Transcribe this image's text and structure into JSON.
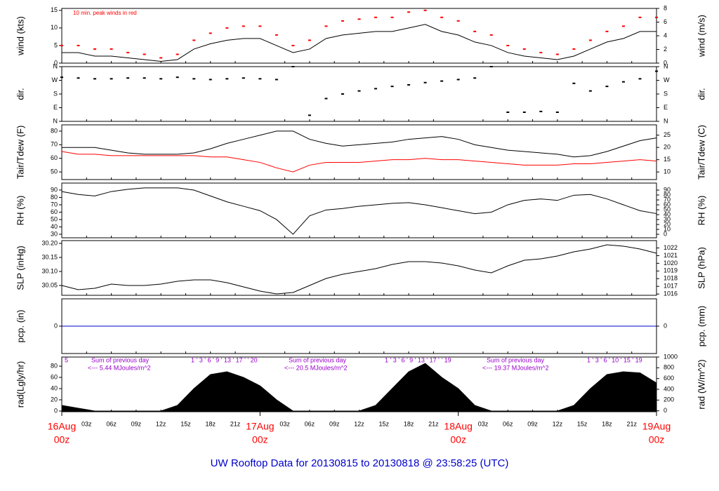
{
  "xaxis": {
    "xlim": [
      0,
      72
    ],
    "xticks": [
      {
        "value": 3,
        "label": "03z"
      },
      {
        "value": 6,
        "label": "06z"
      },
      {
        "value": 9,
        "label": "09z"
      },
      {
        "value": 12,
        "label": "12z"
      },
      {
        "value": 15,
        "label": "15z"
      },
      {
        "value": 18,
        "label": "18z"
      },
      {
        "value": 21,
        "label": "21z"
      },
      {
        "value": 27,
        "label": "03z"
      },
      {
        "value": 30,
        "label": "06z"
      },
      {
        "value": 33,
        "label": "09z"
      },
      {
        "value": 36,
        "label": "12z"
      },
      {
        "value": 39,
        "label": "15z"
      },
      {
        "value": 42,
        "label": "18z"
      },
      {
        "value": 45,
        "label": "21z"
      },
      {
        "value": 51,
        "label": "03z"
      },
      {
        "value": 54,
        "label": "06z"
      },
      {
        "value": 57,
        "label": "09z"
      },
      {
        "value": 60,
        "label": "12z"
      },
      {
        "value": 63,
        "label": "15z"
      },
      {
        "value": 66,
        "label": "18z"
      },
      {
        "value": 69,
        "label": "21z"
      }
    ],
    "date_labels": [
      {
        "value": 0,
        "date": "16Aug",
        "time": "00z"
      },
      {
        "value": 24,
        "date": "17Aug",
        "time": "00z"
      },
      {
        "value": 48,
        "date": "18Aug",
        "time": "00z"
      },
      {
        "value": 72,
        "date": "19Aug",
        "time": "00z"
      }
    ]
  },
  "footer": "UW Rooftop Data for 20130815  to  20130818 @ 23:58:25  (UTC)",
  "chart_data": [
    {
      "type": "line",
      "ylabel": "wind (kts)",
      "y2label": "wind (m/s)",
      "annotation": "10 min. peak winds in red",
      "ylim": [
        0,
        15.55
      ],
      "yticks": [
        0,
        5,
        10,
        15
      ],
      "y2lim": [
        0,
        8
      ],
      "y2ticks": [
        0,
        2,
        4,
        6,
        8
      ],
      "x": [
        0,
        2,
        4,
        6,
        8,
        10,
        12,
        14,
        16,
        18,
        20,
        22,
        24,
        26,
        28,
        30,
        32,
        34,
        36,
        38,
        40,
        42,
        44,
        46,
        48,
        50,
        52,
        54,
        56,
        58,
        60,
        62,
        64,
        66,
        68,
        70,
        72
      ],
      "series": [
        {
          "name": "wind",
          "color": "#000000",
          "style": "line",
          "values": [
            3,
            3,
            2,
            2,
            1.5,
            1,
            0.5,
            1,
            4,
            5.5,
            6.5,
            7,
            7,
            5,
            3,
            4,
            7,
            8,
            8.5,
            9,
            9,
            10,
            11,
            9,
            8,
            6,
            5,
            3,
            2,
            1.5,
            1,
            2,
            4,
            6,
            7,
            9,
            9
          ]
        },
        {
          "name": "peak",
          "color": "#ff0000",
          "style": "points",
          "values": [
            5,
            5,
            4,
            4,
            3,
            2.5,
            1.5,
            2.5,
            6.5,
            8.5,
            10,
            10.5,
            10.5,
            8,
            5,
            6.5,
            10.5,
            12,
            12.5,
            13,
            13,
            14.5,
            15,
            13,
            12,
            9,
            8,
            5,
            4,
            3,
            2.5,
            4,
            6.5,
            9,
            10.5,
            13,
            13
          ]
        }
      ]
    },
    {
      "type": "scatter",
      "ylabel": "dir.",
      "y2label": "dir.",
      "ylim": [
        0,
        360
      ],
      "yticks": [
        {
          "value": 0,
          "label": "N"
        },
        {
          "value": 90,
          "label": "E"
        },
        {
          "value": 180,
          "label": "S"
        },
        {
          "value": 270,
          "label": "W"
        },
        {
          "value": 360,
          "label": "N"
        }
      ],
      "y2lim": [
        0,
        360
      ],
      "y2ticks": [
        {
          "value": 0,
          "label": "N"
        },
        {
          "value": 90,
          "label": "E"
        },
        {
          "value": 180,
          "label": "S"
        },
        {
          "value": 270,
          "label": "W"
        },
        {
          "value": 360,
          "label": "N"
        }
      ],
      "x": [
        0,
        2,
        4,
        6,
        8,
        10,
        12,
        14,
        16,
        18,
        20,
        22,
        24,
        26,
        28,
        30,
        32,
        34,
        36,
        38,
        40,
        42,
        44,
        46,
        48,
        50,
        52,
        54,
        56,
        58,
        60,
        62,
        64,
        66,
        68,
        70,
        72
      ],
      "series": [
        {
          "name": "dir",
          "color": "#000000",
          "values": [
            290,
            285,
            280,
            280,
            285,
            285,
            280,
            290,
            280,
            275,
            280,
            285,
            280,
            275,
            360,
            40,
            150,
            180,
            200,
            215,
            230,
            240,
            255,
            265,
            275,
            285,
            360,
            60,
            60,
            65,
            60,
            250,
            200,
            230,
            260,
            280,
            330
          ]
        }
      ]
    },
    {
      "type": "line",
      "ylabel": "Tair/Tdew (F)",
      "y2label": "Tair/Tdew (C)",
      "ylim": [
        44.4,
        84.6
      ],
      "yticks": [
        50,
        60,
        70,
        80
      ],
      "y2lim": [
        6.9,
        29.2
      ],
      "y2ticks": [
        10,
        15,
        20,
        25
      ],
      "x": [
        0,
        2,
        4,
        6,
        8,
        10,
        12,
        14,
        16,
        18,
        20,
        22,
        24,
        26,
        28,
        30,
        32,
        34,
        36,
        38,
        40,
        42,
        44,
        46,
        48,
        50,
        52,
        54,
        56,
        58,
        60,
        62,
        64,
        66,
        68,
        70,
        72
      ],
      "series": [
        {
          "name": "Tair",
          "color": "#000000",
          "style": "line",
          "values": [
            68,
            68,
            68,
            66,
            64,
            63,
            63,
            63,
            64,
            67,
            71,
            74,
            77,
            80,
            80,
            74,
            71,
            69,
            70,
            71,
            72,
            74,
            75,
            76,
            74,
            70,
            68,
            66,
            65,
            64,
            63,
            61,
            62,
            65,
            69,
            73,
            75
          ]
        },
        {
          "name": "Tdew",
          "color": "#ff0000",
          "style": "line",
          "values": [
            65,
            63,
            63,
            62,
            62,
            62,
            62,
            62,
            62,
            61,
            61,
            59,
            57,
            53,
            50,
            55,
            57,
            57,
            57,
            58,
            59,
            59,
            60,
            59,
            59,
            58,
            57,
            56,
            55,
            55,
            55,
            56,
            56,
            57,
            58,
            59,
            58
          ]
        }
      ]
    },
    {
      "type": "line",
      "ylabel": "RH (%)",
      "y2label": "RH (%)",
      "ylim": [
        25.2,
        99.5
      ],
      "yticks": [
        30,
        40,
        50,
        60,
        70,
        80,
        90
      ],
      "y2lim": [
        -7.1,
        104.3
      ],
      "y2ticks": [
        0,
        10,
        20,
        30,
        40,
        50,
        60,
        70,
        80,
        90
      ],
      "x": [
        0,
        2,
        4,
        6,
        8,
        10,
        12,
        14,
        16,
        18,
        20,
        22,
        24,
        26,
        28,
        30,
        32,
        34,
        36,
        38,
        40,
        42,
        44,
        46,
        48,
        50,
        52,
        54,
        56,
        58,
        60,
        62,
        64,
        66,
        68,
        70,
        72
      ],
      "series": [
        {
          "name": "RH",
          "color": "#000000",
          "style": "line",
          "values": [
            88,
            84,
            82,
            88,
            91,
            93,
            93,
            93,
            90,
            82,
            74,
            68,
            62,
            50,
            30,
            55,
            63,
            65,
            68,
            70,
            72,
            73,
            70,
            66,
            62,
            58,
            60,
            70,
            76,
            78,
            76,
            83,
            84,
            78,
            70,
            62,
            58
          ]
        }
      ]
    },
    {
      "type": "line",
      "ylabel": "SLP (inHg)",
      "y2label": "SLP (hPa)",
      "ylim": [
        30.015,
        30.21
      ],
      "yticks": [
        30.05,
        {
          "value": 30.1,
          "label": "30.10"
        },
        30.15,
        {
          "value": 30.2,
          "label": "30.20"
        }
      ],
      "y2lim": [
        1015.83,
        1022.96
      ],
      "y2ticks": [
        1016,
        1017,
        1018,
        1019,
        1020,
        1021,
        1022
      ],
      "x": [
        0,
        2,
        4,
        6,
        8,
        10,
        12,
        14,
        16,
        18,
        20,
        22,
        24,
        26,
        28,
        30,
        32,
        34,
        36,
        38,
        40,
        42,
        44,
        46,
        48,
        50,
        52,
        54,
        56,
        58,
        60,
        62,
        64,
        66,
        68,
        70,
        72
      ],
      "series": [
        {
          "name": "SLP",
          "color": "#000000",
          "style": "line",
          "values": [
            30.05,
            30.035,
            30.04,
            30.055,
            30.05,
            30.05,
            30.055,
            30.065,
            30.07,
            30.07,
            30.06,
            30.045,
            30.03,
            30.02,
            30.025,
            30.05,
            30.075,
            30.09,
            30.1,
            30.11,
            30.125,
            30.135,
            30.135,
            30.13,
            30.12,
            30.105,
            30.095,
            30.12,
            30.14,
            30.145,
            30.155,
            30.17,
            30.18,
            30.195,
            30.19,
            30.18,
            30.165
          ]
        }
      ]
    },
    {
      "type": "line",
      "ylabel": "pcp. (in)",
      "y2label": "pcp. (mm)",
      "ylim": [
        -0.1,
        0.1
      ],
      "yticks": [
        0
      ],
      "y2lim": [
        -2.54,
        2.54
      ],
      "y2ticks": [
        0
      ],
      "x": [
        0,
        72
      ],
      "series": [
        {
          "name": "pcp",
          "color": "#0000cc",
          "style": "line",
          "values": [
            0,
            0
          ]
        }
      ]
    },
    {
      "type": "area",
      "ylabel": "rad(Lgly/hr)",
      "y2label": "rad (W/m^2)",
      "ylim": [
        -1.25,
        96.3
      ],
      "yticks": [
        0,
        20,
        40,
        60,
        80
      ],
      "y2lim": [
        -17,
        1000
      ],
      "y2ticks": [
        0,
        200,
        400,
        600,
        800,
        1000
      ],
      "notes": [
        {
          "hours": "5",
          "sum": "Sum of previous day",
          "total": "<--- 5.44 MJoules/m^2"
        },
        {
          "hours": "1  '  3  '  6  '  9  ' 13 ' 17 '  ' 20",
          "sum": "Sum of previous day",
          "total": "<--- 20.5 MJoules/m^2"
        },
        {
          "hours": "1  '  3  '  6  '  9  ' 13 ' 17 '  ' 19",
          "sum": "Sum of previous day",
          "total": "<--- 19.37 MJoules/m^2"
        },
        {
          "hours": "1  '  3  '  6  ' 10 ' 15 ' 19"
        }
      ],
      "x": [
        0,
        2,
        4,
        6,
        8,
        10,
        12,
        14,
        16,
        18,
        20,
        22,
        24,
        26,
        28,
        30,
        32,
        34,
        36,
        38,
        40,
        42,
        44,
        46,
        48,
        50,
        52,
        54,
        56,
        58,
        60,
        62,
        64,
        66,
        68,
        70,
        72
      ],
      "series": [
        {
          "name": "rad",
          "color": "#000000",
          "values": [
            10,
            5,
            0,
            0,
            0,
            0,
            0,
            10,
            40,
            65,
            70,
            60,
            45,
            20,
            0,
            0,
            0,
            0,
            0,
            10,
            40,
            70,
            85,
            60,
            40,
            10,
            0,
            0,
            0,
            0,
            0,
            10,
            40,
            65,
            70,
            68,
            50
          ]
        }
      ]
    }
  ]
}
